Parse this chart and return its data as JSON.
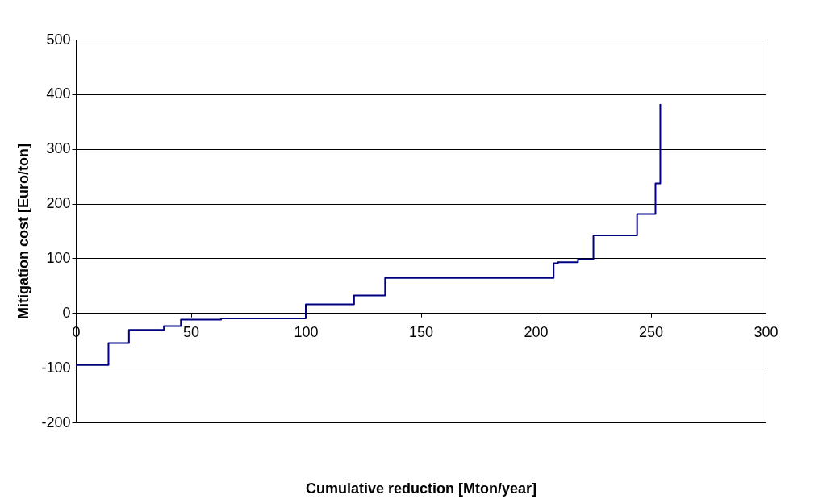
{
  "chart_data": {
    "type": "step",
    "xlabel": "Cumulative reduction [Mton/year]",
    "ylabel": "Mitigation cost [Euro/ton]",
    "x": [
      0,
      14.2,
      23.1,
      38.3,
      45.7,
      63.2,
      100,
      121,
      134.5,
      207.8,
      209.7,
      218.4,
      225.1,
      244.1,
      252.1,
      254.2,
      254.2
    ],
    "series": [
      {
        "color": "#000080",
        "values": [
          -95,
          -55,
          -31,
          -24,
          -12,
          -10,
          16,
          32,
          64,
          91,
          93,
          98,
          142,
          181,
          237,
          237,
          382
        ]
      }
    ],
    "xlim": [
      0,
      300
    ],
    "xticks": [
      0,
      50,
      100,
      150,
      200,
      250,
      300
    ],
    "ylim": [
      -200,
      500
    ],
    "yticks": [
      -200,
      -100,
      0,
      100,
      200,
      300,
      400,
      500
    ],
    "grid": "y"
  }
}
